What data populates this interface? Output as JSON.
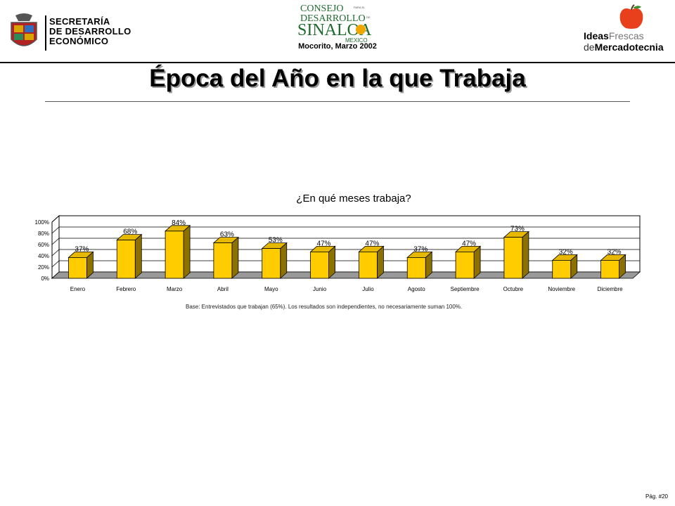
{
  "header": {
    "org_lines": [
      "SECRETARÍA",
      "DE DESARROLLO",
      "ECONÓMICO"
    ],
    "council_logo": {
      "line1": "CONSEJO",
      "line2": "DESARROLLO",
      "line3": "SINALOA",
      "line4": "MEXICO",
      "small1": "PARA EL",
      "small2": "DE"
    },
    "subtitle": "Mocorito, Marzo 2002",
    "brand": {
      "ideas": "Ideas",
      "frescas": "Frescas",
      "de": "de",
      "mercadotecnia": "Mercadotecnia"
    }
  },
  "title": "Época del Año en la que Trabaja",
  "chart_data": {
    "type": "bar",
    "title": "¿En qué meses trabaja?",
    "categories": [
      "Enero",
      "Febrero",
      "Marzo",
      "Abril",
      "Mayo",
      "Junio",
      "Julio",
      "Agosto",
      "Septiembre",
      "Octubre",
      "Noviembre",
      "Diciembre"
    ],
    "values": [
      37,
      68,
      84,
      63,
      53,
      47,
      47,
      37,
      47,
      73,
      32,
      32
    ],
    "data_labels": [
      "37%",
      "68%",
      "84%",
      "63%",
      "53%",
      "47%",
      "47%",
      "37%",
      "47%",
      "73%",
      "32%",
      "32%"
    ],
    "y_ticks": [
      "0%",
      "20%",
      "40%",
      "60%",
      "80%",
      "100%"
    ],
    "ylim": [
      0,
      100
    ],
    "grid": true,
    "colors": {
      "bar_face": "#ffcc00",
      "bar_side": "#8c7000",
      "bar_top": "#e6b800",
      "floor": "#999999"
    }
  },
  "note": "Base:   Entrevistados que trabajan (65%). Los resultados son independientes, no necesariamente suman 100%.",
  "page_label": "Pág. #20"
}
